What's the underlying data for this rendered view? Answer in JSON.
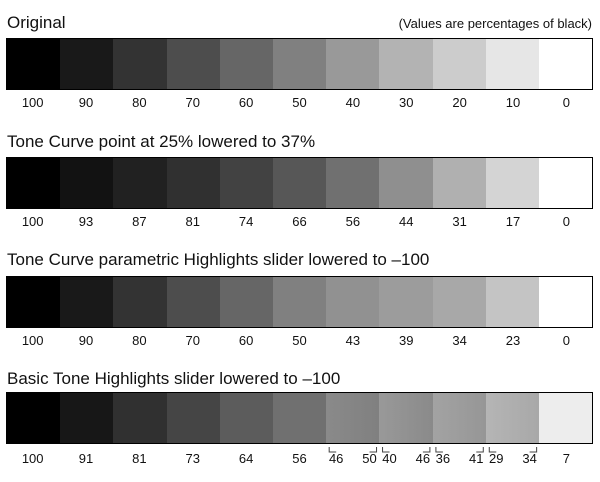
{
  "header_note": "(Values are percentages of black)",
  "rows": [
    {
      "title": "Original",
      "shades": [
        100,
        90,
        80,
        70,
        60,
        50,
        40,
        30,
        20,
        10,
        0
      ],
      "labels": [
        "100",
        "90",
        "80",
        "70",
        "60",
        "50",
        "40",
        "30",
        "20",
        "10",
        "0"
      ]
    },
    {
      "title": "Tone Curve point at 25% lowered to 37%",
      "shades": [
        100,
        93,
        87,
        81,
        74,
        66,
        56,
        44,
        31,
        17,
        0
      ],
      "labels": [
        "100",
        "93",
        "87",
        "81",
        "74",
        "66",
        "56",
        "44",
        "31",
        "17",
        "0"
      ]
    },
    {
      "title": "Tone Curve parametric Highlights slider lowered to –100",
      "shades": [
        100,
        90,
        80,
        70,
        60,
        50,
        43,
        39,
        34,
        23,
        0
      ],
      "labels": [
        "100",
        "90",
        "80",
        "70",
        "60",
        "50",
        "43",
        "39",
        "34",
        "23",
        "0"
      ]
    },
    {
      "title": "Basic Tone Highlights slider lowered to –100",
      "shades": [
        100,
        91,
        81,
        73,
        64,
        56,
        [
          46,
          50
        ],
        [
          40,
          46
        ],
        [
          36,
          41
        ],
        [
          29,
          34
        ],
        7
      ],
      "labels": [
        "100",
        "91",
        "81",
        "73",
        "64",
        "56",
        [
          "46",
          "50"
        ],
        [
          "40",
          "46"
        ],
        [
          "36",
          "41"
        ],
        [
          "29",
          "34"
        ],
        "7"
      ]
    }
  ]
}
